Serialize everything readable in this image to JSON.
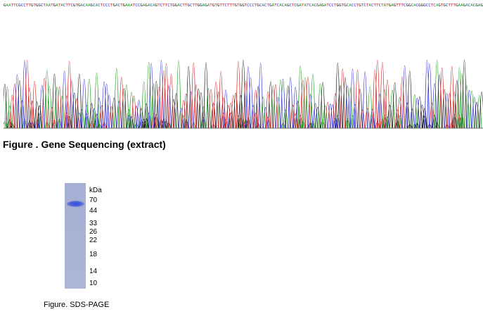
{
  "sequencing": {
    "caption": "Figure . Gene Sequencing (extract)",
    "base_calls": "GAATTCGCCTTGTGGCTAATGATACTTCGTGACAAGCACTCCCTGACTGAAATCCGAGACAGTCTTCTGGACTTGCTTGGAGATGTGTTCTTTGTGGTCCCTGCACTGATCACAGCTCGATATCACGAGATCCTGGTGCACCTGTCTACTTCTATGAGTTTCGGCACGGGCCTCAGTGCTTTGAAGACACGAG",
    "base_colors": {
      "A": "#1a9a1a",
      "C": "#2a2ad8",
      "G": "#111111",
      "T": "#d01818"
    }
  },
  "gel": {
    "unit_label": "kDa",
    "markers": [
      "70",
      "44",
      "33",
      "26",
      "22",
      "18",
      "14",
      "10"
    ],
    "caption": "Figure. SDS-PAGE",
    "band_color": "#3352e0"
  }
}
